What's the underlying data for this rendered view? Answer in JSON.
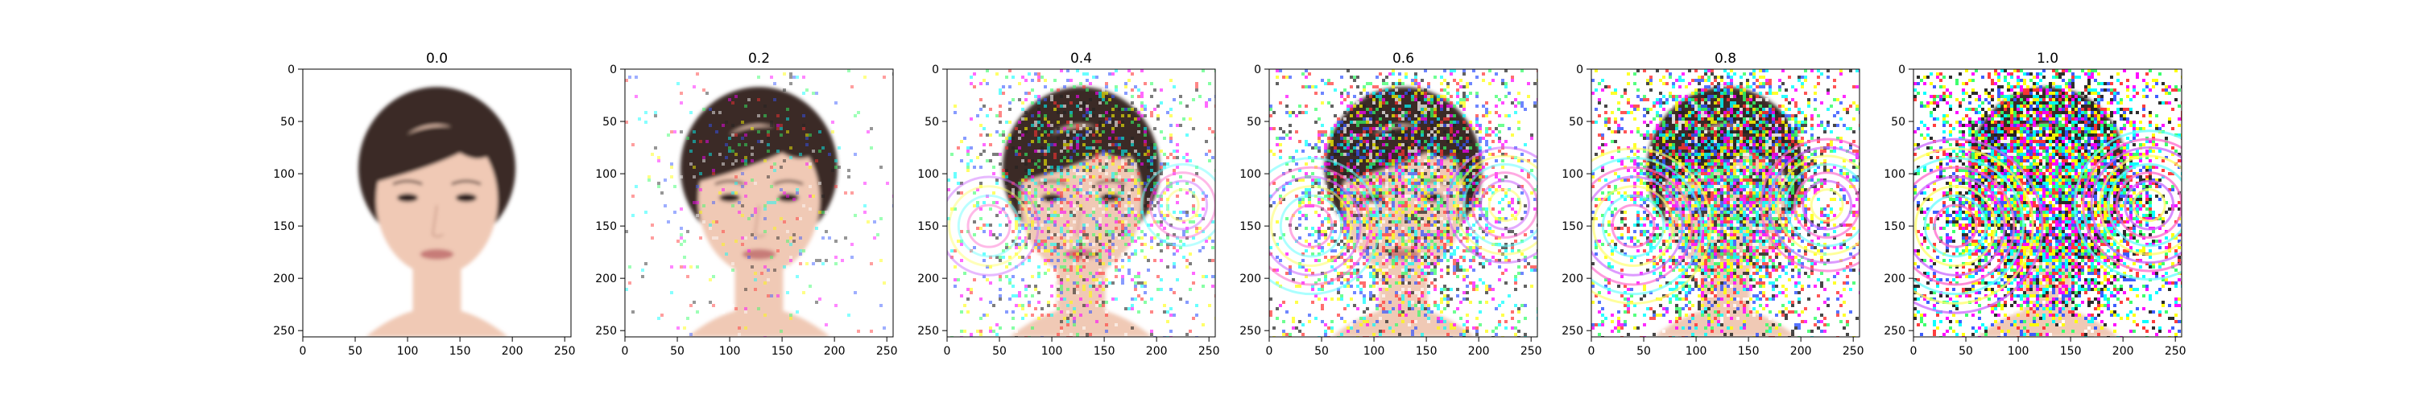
{
  "chart_data": {
    "type": "image-grid",
    "noise_strengths": [
      0.0,
      0.2,
      0.4,
      0.6,
      0.8,
      1.0
    ],
    "panels": [
      {
        "title": "0.0",
        "noise": 0.0,
        "xlim": [
          0,
          256
        ],
        "ylim": [
          256,
          0
        ]
      },
      {
        "title": "0.2",
        "noise": 0.2,
        "xlim": [
          0,
          256
        ],
        "ylim": [
          256,
          0
        ]
      },
      {
        "title": "0.4",
        "noise": 0.4,
        "xlim": [
          0,
          256
        ],
        "ylim": [
          256,
          0
        ]
      },
      {
        "title": "0.6",
        "noise": 0.6,
        "xlim": [
          0,
          256
        ],
        "ylim": [
          256,
          0
        ]
      },
      {
        "title": "0.8",
        "noise": 0.8,
        "xlim": [
          0,
          256
        ],
        "ylim": [
          256,
          0
        ]
      },
      {
        "title": "1.0",
        "noise": 1.0,
        "xlim": [
          0,
          256
        ],
        "ylim": [
          256,
          0
        ]
      }
    ],
    "x_ticks": [
      "0",
      "50",
      "100",
      "150",
      "200",
      "250"
    ],
    "x_tick_values": [
      0,
      50,
      100,
      150,
      200,
      250
    ],
    "y_ticks": [
      "0",
      "50",
      "100",
      "150",
      "200",
      "250"
    ],
    "y_tick_values": [
      0,
      50,
      100,
      150,
      200,
      250
    ],
    "image_extent": 256,
    "grid": false,
    "content": "portrait-face",
    "colors": {
      "skin": "#f0c9b5",
      "hair": "#3b2b26",
      "background": "#ffffff",
      "lips": "#c77b78",
      "noise_palette": [
        "#ff00ff",
        "#00ffff",
        "#ffff00",
        "#ff3333",
        "#33ff66",
        "#3355ff",
        "#ffffff",
        "#222222"
      ]
    }
  }
}
